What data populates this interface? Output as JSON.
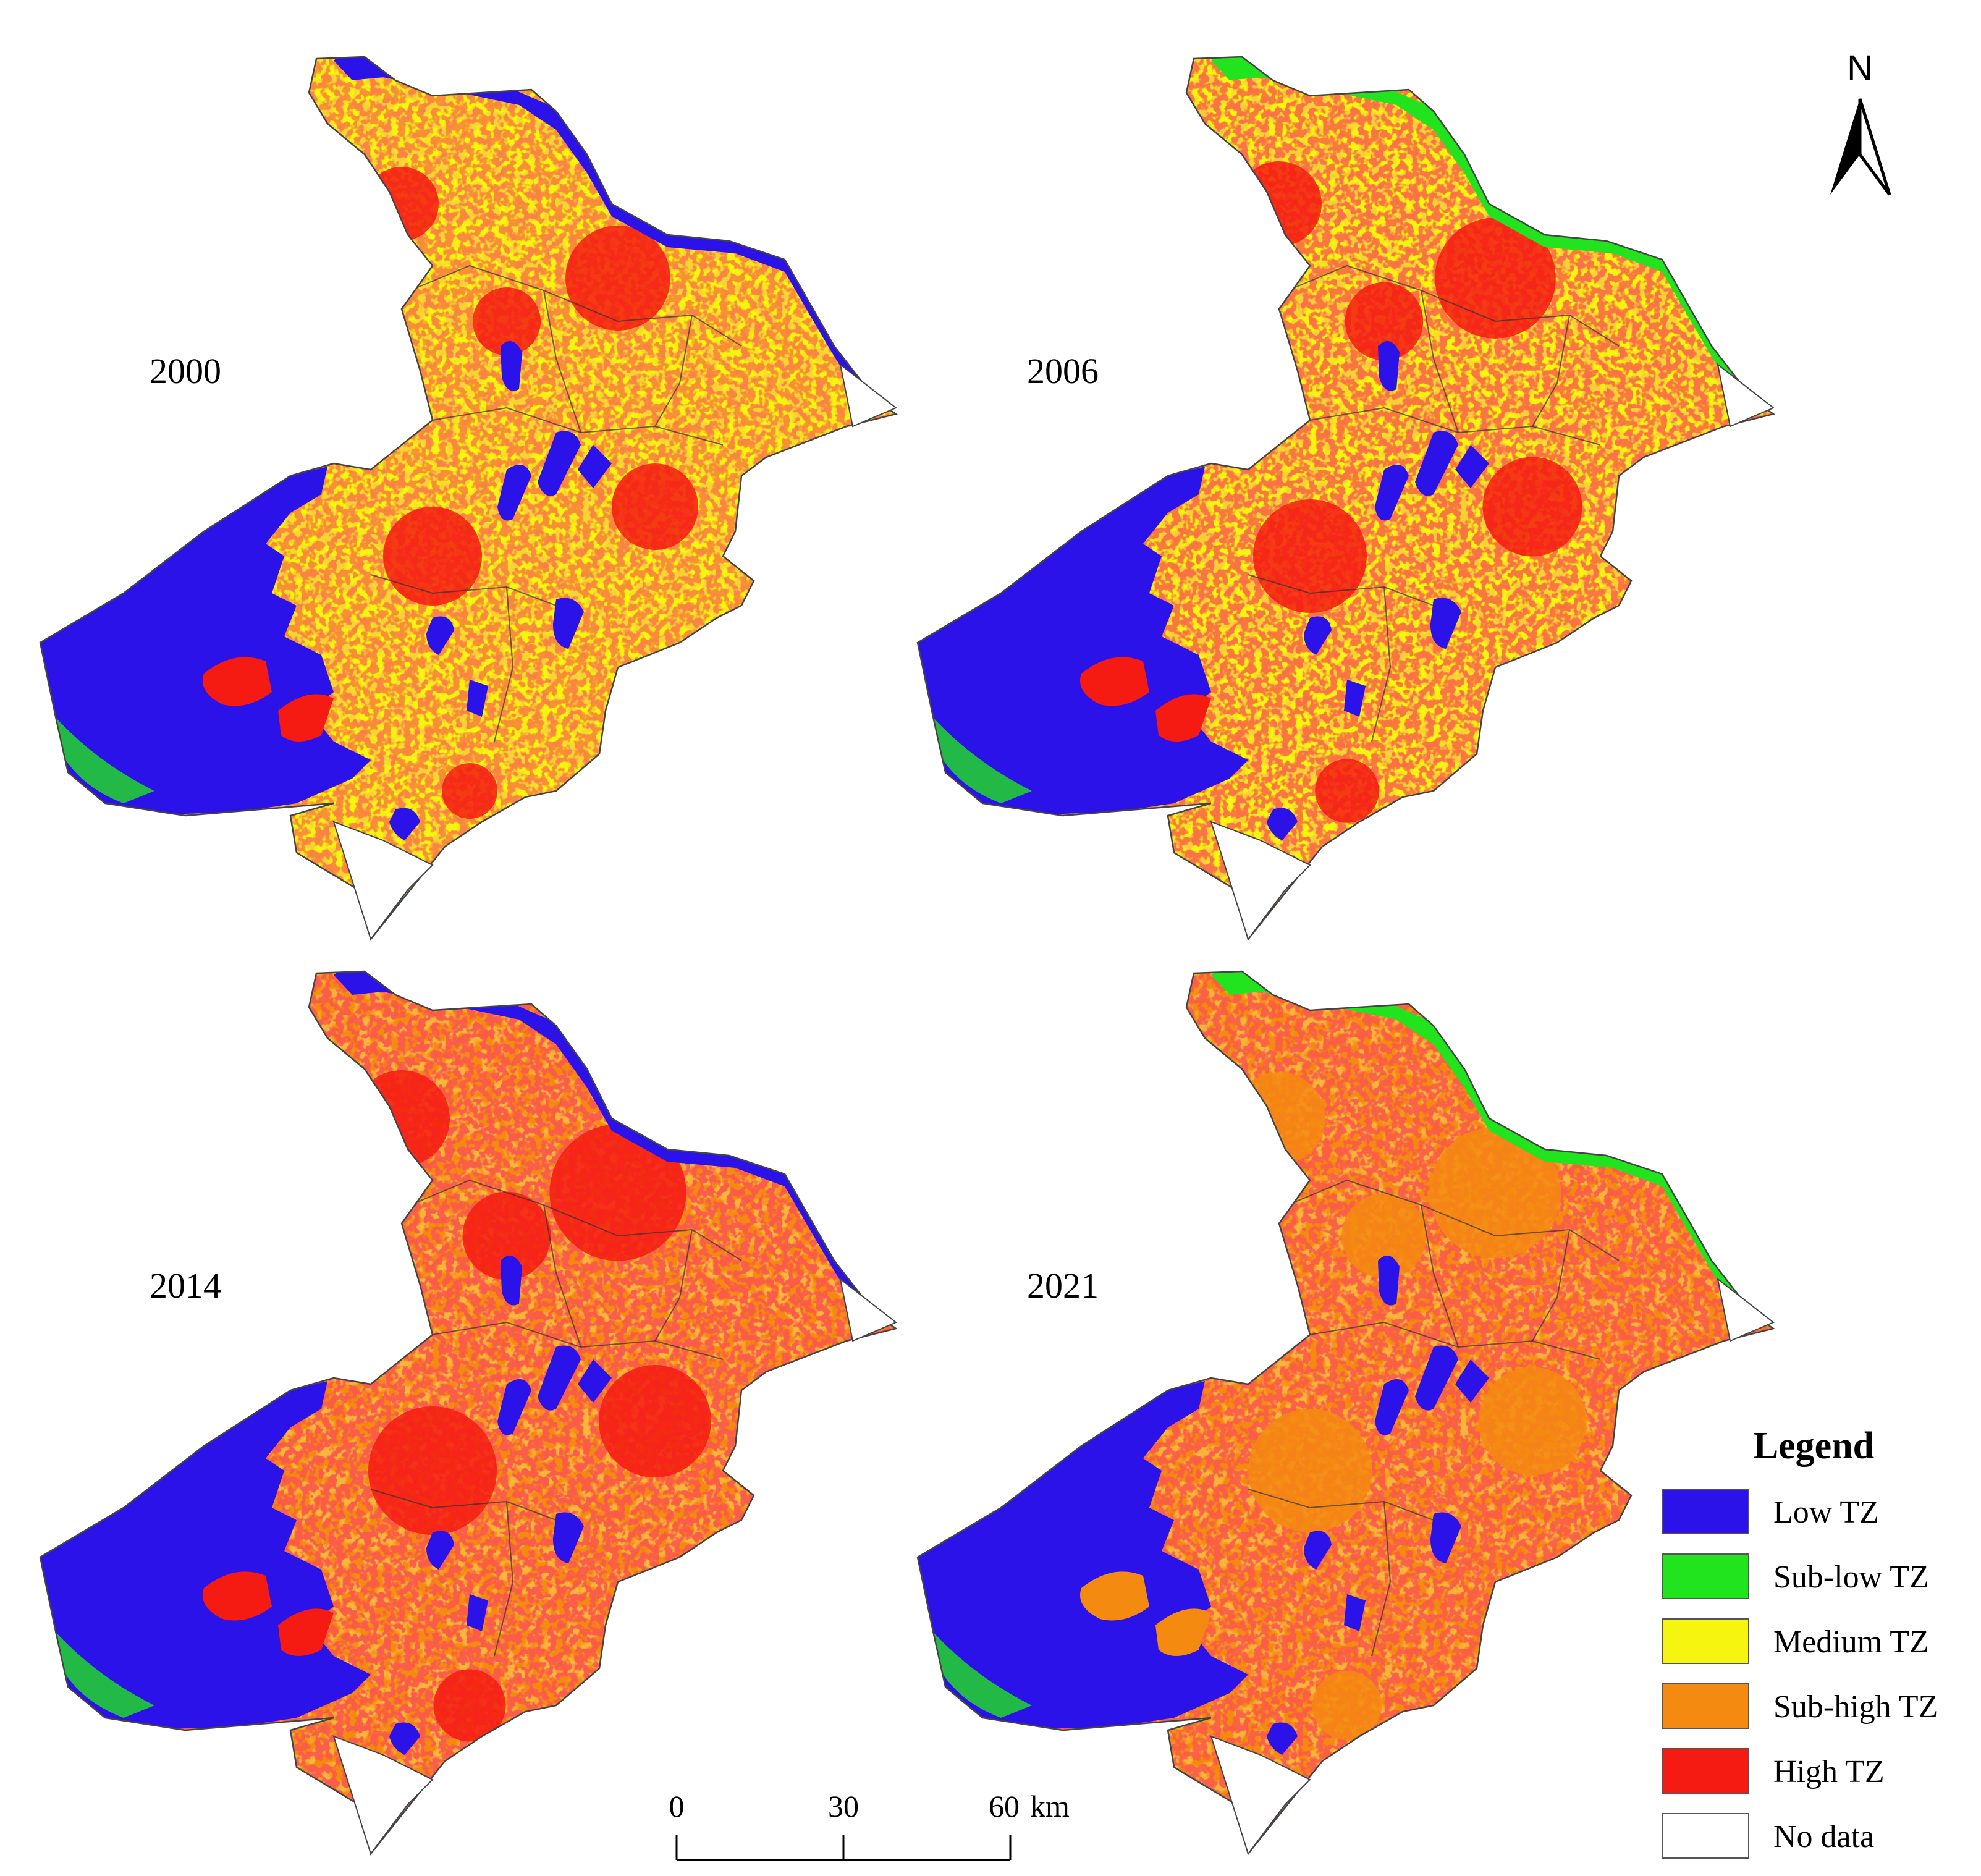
{
  "panels": [
    {
      "year": "2000",
      "lake_class": "low",
      "river_class": "low",
      "urban_class": "high",
      "urban_extent": 0.3,
      "dominant": "medium"
    },
    {
      "year": "2006",
      "lake_class": "low",
      "river_class": "sublow",
      "urban_class": "high",
      "urban_extent": 0.45,
      "dominant": "medium"
    },
    {
      "year": "2014",
      "lake_class": "low",
      "river_class": "low",
      "urban_class": "high",
      "urban_extent": 0.6,
      "dominant": "subhigh"
    },
    {
      "year": "2021",
      "lake_class": "low",
      "river_class": "sublow",
      "urban_class": "subhigh",
      "urban_extent": 0.55,
      "dominant": "subhigh"
    }
  ],
  "legend": {
    "title": "Legend",
    "items": [
      {
        "key": "low",
        "label": "Low TZ",
        "color": "#2b12e8"
      },
      {
        "key": "sublow",
        "label": "Sub-low TZ",
        "color": "#22e41e"
      },
      {
        "key": "medium",
        "label": "Medium TZ",
        "color": "#f5f510"
      },
      {
        "key": "subhigh",
        "label": "Sub-high TZ",
        "color": "#f58a10"
      },
      {
        "key": "high",
        "label": "High TZ",
        "color": "#f51a12"
      },
      {
        "key": "nodata",
        "label": "No data",
        "color": "#ffffff"
      }
    ]
  },
  "scale_bar": {
    "ticks": [
      "0",
      "30",
      "60"
    ],
    "unit": "km"
  },
  "north_arrow": {
    "label": "N",
    "icon": "north-arrow-icon"
  }
}
